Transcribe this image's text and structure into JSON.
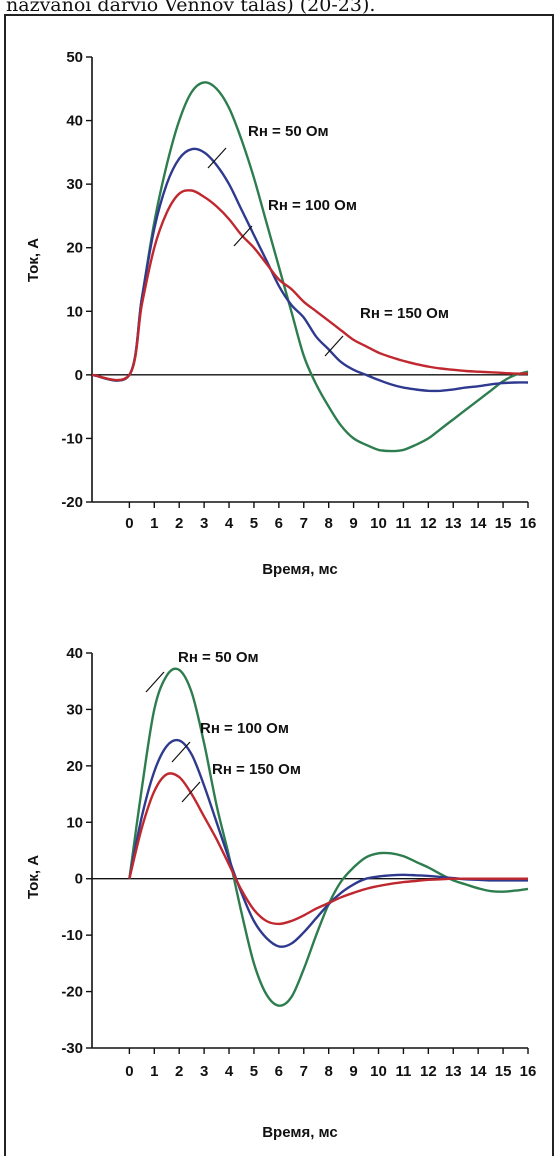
{
  "caption": "nazvanoi darvio Vennov talas) (20-23).",
  "colors": {
    "green": "#2e7d4f",
    "blue": "#2f3a8f",
    "red": "#c0282f",
    "axis": "#111111"
  },
  "chart_data": [
    {
      "type": "line",
      "xlabel": "Время, мс",
      "ylabel": "Ток, А",
      "xlim": [
        -1.5,
        16
      ],
      "ylim": [
        -20,
        50
      ],
      "xticks": [
        0,
        1,
        2,
        3,
        4,
        5,
        6,
        7,
        8,
        9,
        10,
        11,
        12,
        13,
        14,
        15,
        16
      ],
      "yticks": [
        -20,
        -10,
        0,
        10,
        20,
        30,
        40,
        50
      ],
      "series": [
        {
          "name": "Rн = 50 Ом",
          "color": "#2e7d4f",
          "x": [
            -1.5,
            0,
            0.5,
            1,
            1.5,
            2,
            2.5,
            3,
            3.5,
            4,
            4.5,
            5,
            5.5,
            6,
            6.5,
            7,
            7.5,
            8,
            8.5,
            9,
            9.5,
            10,
            10.5,
            11,
            11.5,
            12,
            12.5,
            13,
            13.5,
            14,
            14.5,
            15,
            15.5,
            16
          ],
          "y": [
            0,
            0,
            12,
            24,
            33,
            40,
            44.5,
            46,
            45,
            42,
            37,
            31,
            24,
            17,
            10,
            3,
            -1.5,
            -5,
            -8,
            -10,
            -11,
            -11.8,
            -12,
            -11.8,
            -11,
            -10,
            -8.5,
            -7,
            -5.5,
            -4,
            -2.5,
            -1,
            0,
            0.5
          ]
        },
        {
          "name": "Rн = 100 Ом",
          "color": "#2f3a8f",
          "x": [
            -1.5,
            0,
            0.5,
            1,
            1.5,
            2,
            2.5,
            3,
            3.5,
            4,
            4.5,
            5,
            5.5,
            6,
            6.5,
            7,
            7.5,
            8,
            8.5,
            9,
            9.5,
            10,
            10.5,
            11,
            11.5,
            12,
            12.5,
            13,
            13.5,
            14,
            14.5,
            15,
            15.5,
            16
          ],
          "y": [
            0,
            0,
            12,
            23,
            30,
            34,
            35.5,
            35,
            33,
            30,
            26,
            22,
            18,
            14,
            11,
            9,
            6,
            4,
            2,
            0.8,
            0,
            -0.8,
            -1.5,
            -2,
            -2.3,
            -2.5,
            -2.5,
            -2.3,
            -2,
            -1.8,
            -1.5,
            -1.3,
            -1.2,
            -1.2
          ]
        },
        {
          "name": "Rн = 150 Ом",
          "color": "#c0282f",
          "x": [
            -1.5,
            0,
            0.5,
            1,
            1.5,
            2,
            2.5,
            3,
            3.5,
            4,
            4.5,
            5,
            5.5,
            6,
            6.5,
            7,
            7.5,
            8,
            8.5,
            9,
            9.5,
            10,
            10.5,
            11,
            11.5,
            12,
            12.5,
            13,
            13.5,
            14,
            14.5,
            15,
            15.5,
            16
          ],
          "y": [
            0,
            0,
            11,
            20,
            25.5,
            28.5,
            29,
            28,
            26.5,
            24.5,
            22,
            20,
            17.5,
            15,
            13.5,
            11.5,
            10,
            8.5,
            7,
            5.5,
            4.5,
            3.5,
            2.8,
            2.2,
            1.7,
            1.3,
            1,
            0.8,
            0.6,
            0.5,
            0.4,
            0.3,
            0.2,
            0.2
          ]
        }
      ],
      "labels": [
        {
          "series": 0,
          "text": "Rн = 50 Ом"
        },
        {
          "series": 1,
          "text": "Rн = 100 Ом"
        },
        {
          "series": 2,
          "text": "Rн = 150 Ом"
        }
      ]
    },
    {
      "type": "line",
      "xlabel": "Время, мс",
      "ylabel": "Ток, А",
      "xlim": [
        -1.5,
        16
      ],
      "ylim": [
        -30,
        40
      ],
      "xticks": [
        0,
        1,
        2,
        3,
        4,
        5,
        6,
        7,
        8,
        9,
        10,
        11,
        12,
        13,
        14,
        15,
        16
      ],
      "yticks": [
        -30,
        -20,
        -10,
        0,
        10,
        20,
        30,
        40
      ],
      "series": [
        {
          "name": "Rн = 50 Ом",
          "color": "#2e7d4f",
          "x": [
            0,
            0.5,
            1,
            1.5,
            2,
            2.5,
            3,
            3.5,
            4,
            4.5,
            5,
            5.5,
            6,
            6.5,
            7,
            7.5,
            8,
            8.5,
            9,
            9.5,
            10,
            10.5,
            11,
            11.5,
            12,
            12.5,
            13,
            13.5,
            14,
            14.5,
            15,
            15.5,
            16
          ],
          "y": [
            0,
            16,
            30,
            36,
            37,
            33,
            24,
            13,
            4,
            -6,
            -15,
            -20.5,
            -22.5,
            -21,
            -16,
            -10,
            -4.5,
            -0.5,
            2,
            3.8,
            4.5,
            4.5,
            4,
            3,
            2,
            0.8,
            -0.3,
            -1,
            -1.7,
            -2.2,
            -2.3,
            -2.1,
            -1.8
          ]
        },
        {
          "name": "Rн = 100 Ом",
          "color": "#2f3a8f",
          "x": [
            0,
            0.5,
            1,
            1.5,
            2,
            2.5,
            3,
            3.5,
            4,
            4.5,
            5,
            5.5,
            6,
            6.5,
            7,
            7.5,
            8,
            8.5,
            9,
            9.5,
            10,
            10.5,
            11,
            11.5,
            12,
            12.5,
            13,
            13.5,
            14,
            14.5,
            15,
            15.5,
            16
          ],
          "y": [
            0,
            11,
            19,
            23.5,
            24.5,
            22,
            16.5,
            10,
            3.5,
            -2.5,
            -7.5,
            -10.5,
            -12,
            -11.5,
            -9.5,
            -7,
            -4.5,
            -2.5,
            -1,
            0,
            0.4,
            0.6,
            0.7,
            0.6,
            0.5,
            0.3,
            0.1,
            -0.1,
            -0.2,
            -0.3,
            -0.3,
            -0.3,
            -0.3
          ]
        },
        {
          "name": "Rн = 150 Ом",
          "color": "#c0282f",
          "x": [
            0,
            0.5,
            1,
            1.5,
            2,
            2.5,
            3,
            3.5,
            4,
            4.5,
            5,
            5.5,
            6,
            6.5,
            7,
            7.5,
            8,
            8.5,
            9,
            9.5,
            10,
            10.5,
            11,
            11.5,
            12,
            12.5,
            13,
            13.5,
            14,
            14.5,
            15,
            15.5,
            16
          ],
          "y": [
            0,
            9,
            15.5,
            18.5,
            18,
            15,
            11,
            7,
            2.5,
            -2,
            -5.5,
            -7.5,
            -8,
            -7.5,
            -6.5,
            -5.3,
            -4.3,
            -3.3,
            -2.5,
            -1.8,
            -1.3,
            -0.9,
            -0.6,
            -0.4,
            -0.2,
            -0.1,
            0,
            0,
            0,
            0,
            0,
            0,
            0
          ]
        }
      ],
      "labels": [
        {
          "series": 0,
          "text": "Rн = 50 Ом"
        },
        {
          "series": 1,
          "text": "Rн = 100 Ом"
        },
        {
          "series": 2,
          "text": "Rн = 150 Ом"
        }
      ]
    }
  ]
}
